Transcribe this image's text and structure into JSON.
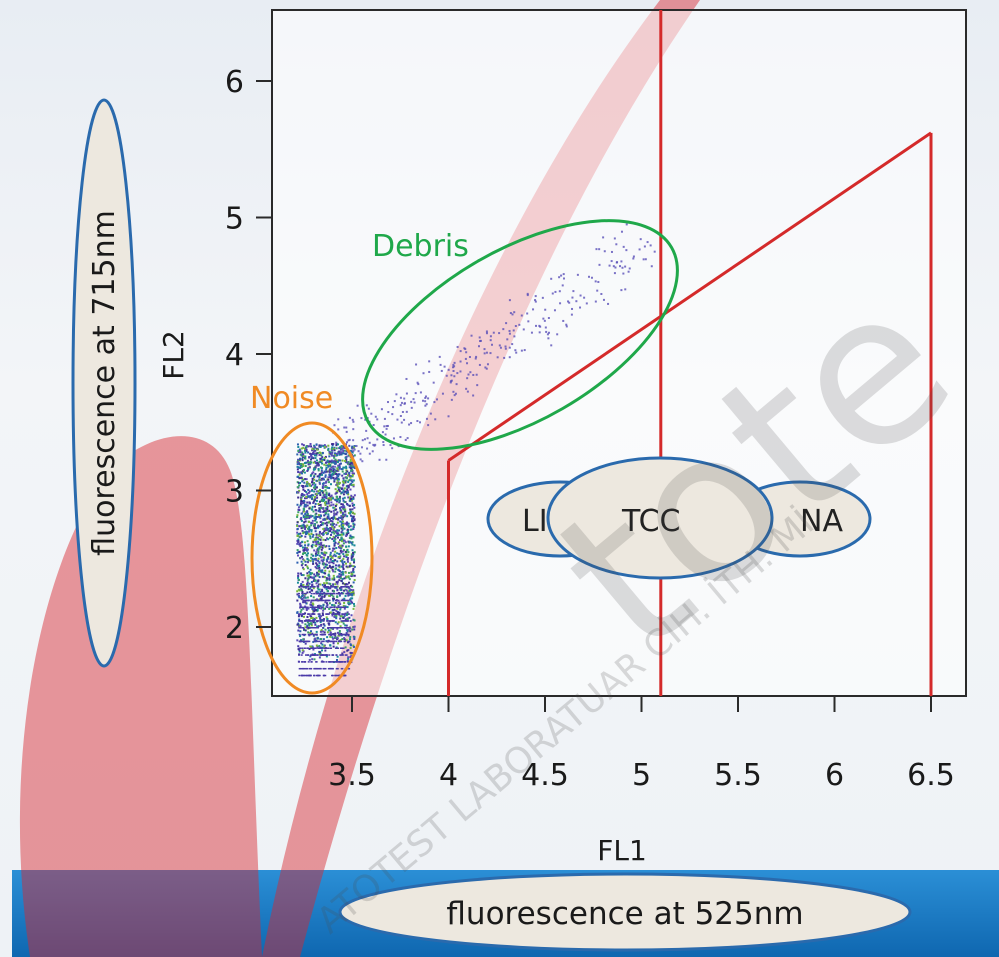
{
  "chart_data": {
    "type": "scatter",
    "xlabel": "FL1",
    "ylabel": "FL2",
    "xlim": [
      3.2,
      6.55
    ],
    "ylim": [
      1.55,
      6.5
    ],
    "x_ticks": [
      3.5,
      4,
      4.5,
      5,
      5.5,
      6,
      6.5
    ],
    "x_tick_labels": [
      "3.5",
      "4",
      "4.5",
      "5",
      "5.5",
      "6",
      "6.5"
    ],
    "y_ticks": [
      2,
      3,
      4,
      5,
      6
    ],
    "y_tick_labels": [
      "2",
      "3",
      "4",
      "5",
      "6"
    ],
    "grid": false,
    "regions": [
      {
        "label": "Noise",
        "color": "#f08a24",
        "center": [
          3.3,
          2.7
        ],
        "x_range": [
          3.2,
          3.5
        ],
        "y_range": [
          1.6,
          3.95
        ]
      },
      {
        "label": "Debris",
        "color": "#1fa84a",
        "center": [
          4.45,
          4.25
        ],
        "x_range": [
          3.6,
          5.3
        ],
        "y_range": [
          3.6,
          5.1
        ]
      }
    ],
    "gates": [
      {
        "label": "LI",
        "x_range": [
          4.0,
          5.1
        ]
      },
      {
        "label": "TCC",
        "x_range": [
          4.0,
          6.5
        ]
      },
      {
        "label": "NA",
        "x_range": [
          5.1,
          6.5
        ]
      }
    ],
    "gate_lines": {
      "color": "#d42a2a",
      "vertical_x": [
        4.0,
        5.1,
        6.5
      ],
      "diagonal": [
        [
          4.0,
          3.22
        ],
        [
          6.5,
          5.62
        ]
      ]
    }
  },
  "annotations": {
    "y_axis_description": "fluorescence at 715nm",
    "x_axis_description": "fluorescence at 525nm"
  },
  "watermark": {
    "brand": "tote",
    "text": "ATOTEST LABORATUAR CİH. İTH. Mİ",
    "color": "#d42a2a"
  },
  "colors": {
    "oval_fill": "#ede8df",
    "oval_stroke": "#2a6aad",
    "bottom_band": "#1a7cc4"
  }
}
